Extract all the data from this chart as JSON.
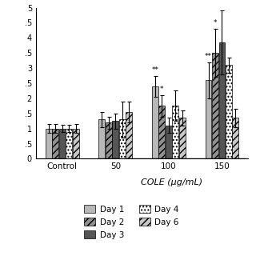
{
  "groups": [
    "Control",
    "50",
    "100",
    "150"
  ],
  "days": [
    "Day 1",
    "Day 2",
    "Day 3",
    "Day 4",
    "Day 6"
  ],
  "values": {
    "Control": [
      1.0,
      1.0,
      1.0,
      1.0,
      1.0
    ],
    "50": [
      1.3,
      1.2,
      1.25,
      1.3,
      1.55
    ],
    "100": [
      2.4,
      1.75,
      1.1,
      1.75,
      1.35
    ],
    "150": [
      2.6,
      3.5,
      3.85,
      3.1,
      1.35
    ]
  },
  "errors": {
    "Control": [
      0.15,
      0.15,
      0.12,
      0.12,
      0.15
    ],
    "50": [
      0.25,
      0.2,
      0.25,
      0.6,
      0.35
    ],
    "100": [
      0.35,
      0.35,
      0.25,
      0.5,
      0.25
    ],
    "150": [
      0.6,
      0.8,
      1.05,
      0.25,
      0.3
    ]
  },
  "significance": {
    "Control": [
      "",
      "",
      "",
      "",
      ""
    ],
    "50": [
      "",
      "",
      "",
      "",
      ""
    ],
    "100": [
      "**",
      "*",
      "",
      "",
      ""
    ],
    "150": [
      "**",
      "*",
      "",
      "",
      ""
    ]
  },
  "colors": [
    "#b8b8b8",
    "#909090",
    "#555555",
    "#ffffff",
    "#c8c8c8"
  ],
  "hatches": [
    "",
    "////",
    "",
    "....",
    "////"
  ],
  "hatch_colors": [
    "black",
    "black",
    "black",
    "black",
    "black"
  ],
  "xlabel": "COLE (μg/mL)",
  "ylim": [
    0,
    5
  ],
  "yticks": [
    0,
    0.5,
    1,
    1.5,
    2,
    2.5,
    3,
    3.5,
    4,
    4.5,
    5
  ],
  "ytick_labels": [
    "0",
    ".5",
    "1",
    ".5",
    "2",
    ".5",
    "3",
    ".5",
    "4",
    ".5",
    "5"
  ],
  "background_color": "#ffffff",
  "legend_days": [
    "Day 1",
    "Day 2",
    "Day 3",
    "Day 4",
    "Day 6"
  ],
  "legend_colors": [
    "#b8b8b8",
    "#909090",
    "#555555",
    "#ffffff",
    "#c8c8c8"
  ],
  "legend_hatches": [
    "",
    "////",
    "",
    "....",
    "////"
  ]
}
